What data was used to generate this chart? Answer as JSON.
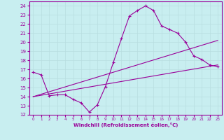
{
  "xlabel": "Windchill (Refroidissement éolien,°C)",
  "bg_color": "#c8eef0",
  "line_color": "#990099",
  "grid_color": "#b8dde0",
  "xlim": [
    -0.5,
    23.5
  ],
  "ylim": [
    12,
    24.5
  ],
  "xticks": [
    0,
    1,
    2,
    3,
    4,
    5,
    6,
    7,
    8,
    9,
    10,
    11,
    12,
    13,
    14,
    15,
    16,
    17,
    18,
    19,
    20,
    21,
    22,
    23
  ],
  "yticks": [
    12,
    13,
    14,
    15,
    16,
    17,
    18,
    19,
    20,
    21,
    22,
    23,
    24
  ],
  "line1_x": [
    0,
    1,
    2,
    3,
    4,
    5,
    6,
    7,
    8,
    9,
    10,
    11,
    12,
    13,
    14,
    15,
    16,
    17,
    18,
    19,
    20,
    21,
    22,
    23
  ],
  "line1_y": [
    16.7,
    16.4,
    14.1,
    14.2,
    14.2,
    13.7,
    13.3,
    12.3,
    13.1,
    15.1,
    17.8,
    20.4,
    22.9,
    23.5,
    24.0,
    23.5,
    21.8,
    21.4,
    21.0,
    20.0,
    18.5,
    18.1,
    17.5,
    17.3
  ],
  "line2_x": [
    0,
    23
  ],
  "line2_y": [
    14.0,
    20.2
  ],
  "line3_x": [
    0,
    23
  ],
  "line3_y": [
    14.0,
    17.5
  ],
  "marker": "+"
}
